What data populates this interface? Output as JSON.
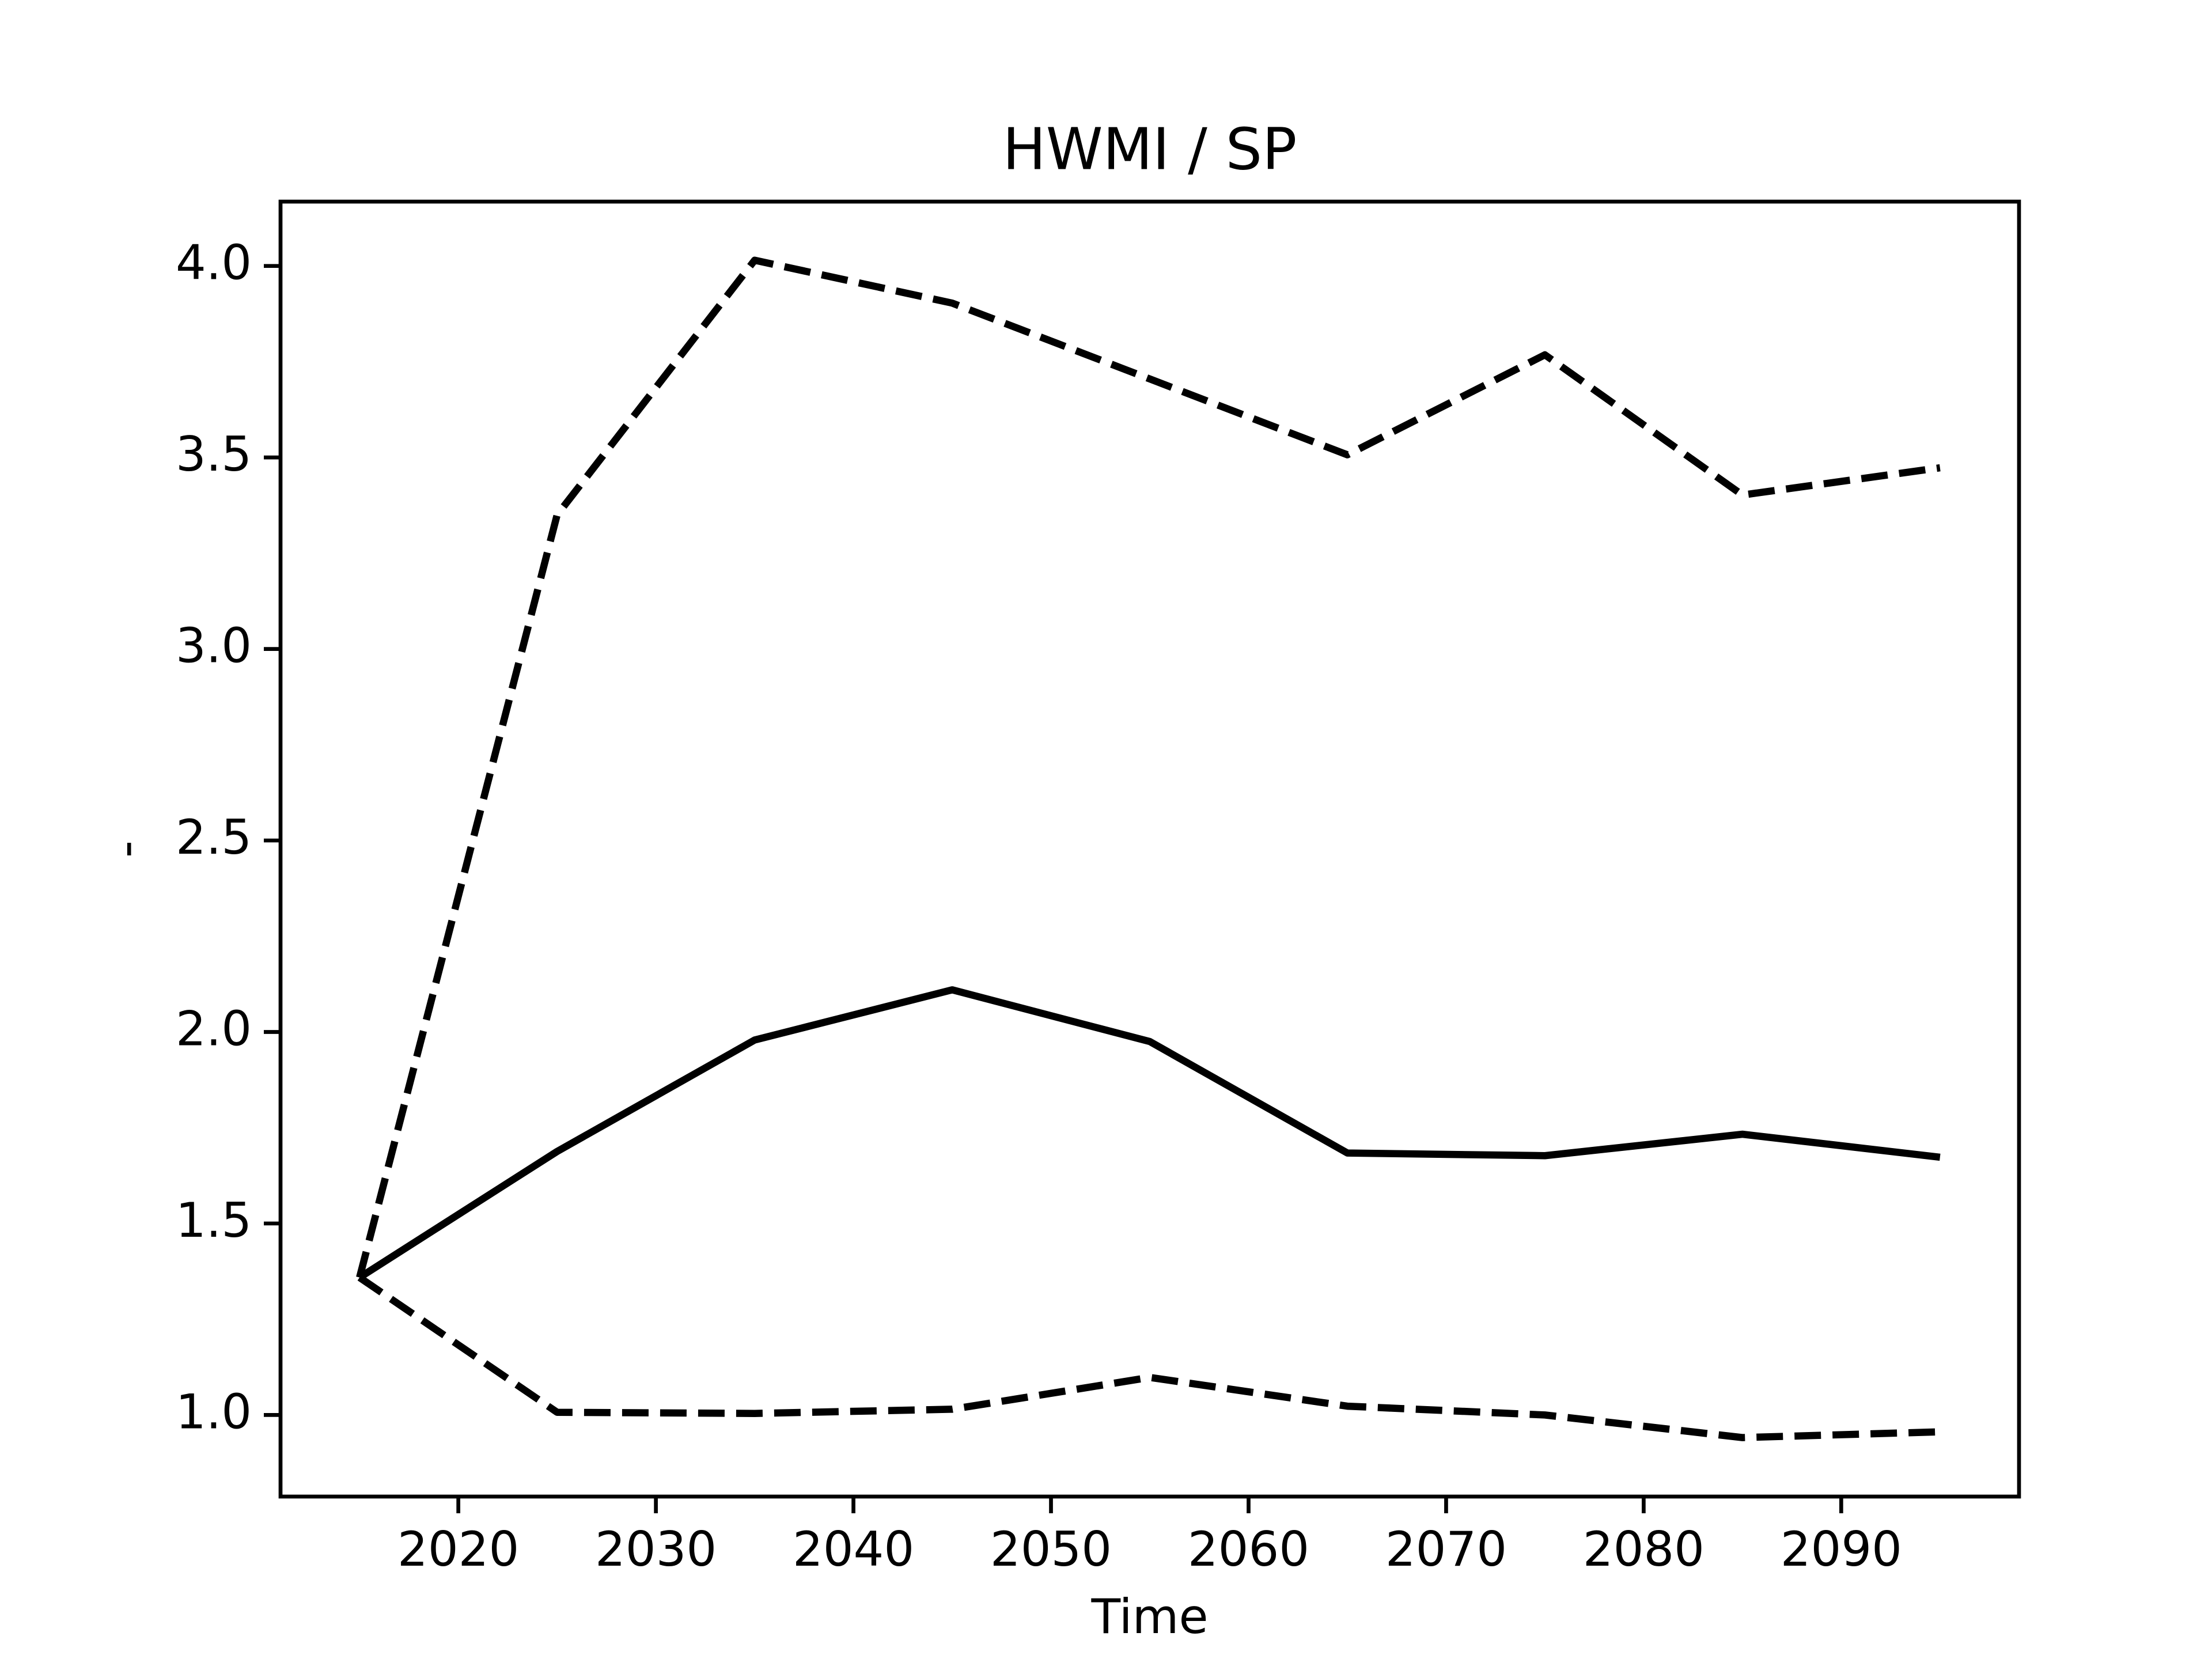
{
  "chart_data": {
    "type": "line",
    "title": "HWMI / SP",
    "xlabel": "Time",
    "ylabel": "-",
    "x": [
      2015,
      2025,
      2035,
      2045,
      2055,
      2065,
      2075,
      2085,
      2095
    ],
    "series": [
      {
        "color": "#000000",
        "dash": true,
        "values": [
          1.359,
          3.35,
          4.015,
          3.903,
          3.705,
          3.507,
          3.768,
          3.402,
          3.473
        ]
      },
      {
        "color": "#000000",
        "dash": false,
        "values": [
          1.359,
          1.688,
          1.979,
          2.11,
          1.975,
          1.684,
          1.677,
          1.733,
          1.673
        ]
      },
      {
        "color": "#000000",
        "dash": true,
        "values": [
          1.359,
          1.007,
          1.004,
          1.015,
          1.098,
          1.023,
          1.0,
          0.941,
          0.956
        ]
      }
    ],
    "xlim": [
      2011,
      2099
    ],
    "xticks": [
      2020,
      2030,
      2040,
      2050,
      2060,
      2070,
      2080,
      2090
    ],
    "ylim": [
      0.787,
      4.168
    ],
    "yticks": [
      {
        "value": 1.0,
        "label": "1.0"
      },
      1.5,
      {
        "value": 2.0,
        "label": "2.0"
      },
      2.5,
      {
        "value": 3.0,
        "label": "3.0"
      },
      3.5,
      {
        "value": 4.0,
        "label": "4.0"
      }
    ],
    "grid": false
  }
}
